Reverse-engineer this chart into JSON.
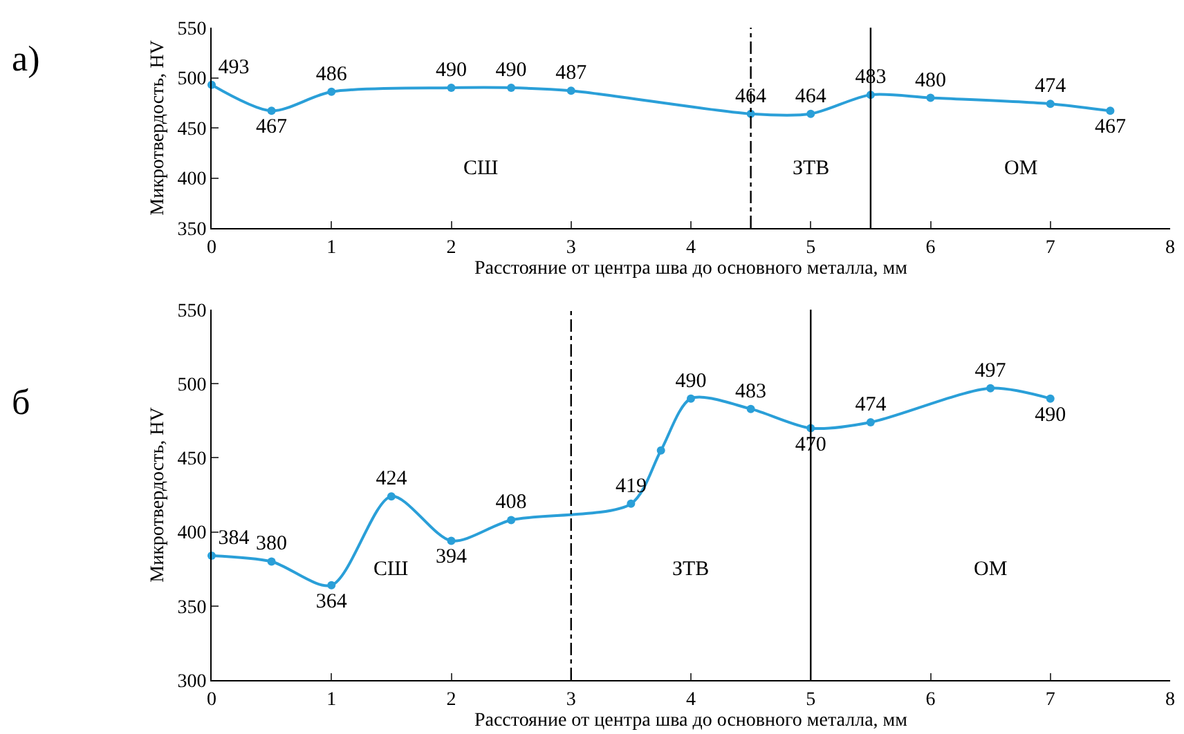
{
  "chart_data": [
    {
      "type": "line",
      "title": "а)",
      "xlabel": "Расстояние от центра шва до основного металла, мм",
      "ylabel": "Микротвердость, HV",
      "x": [
        0,
        0.5,
        1,
        2,
        2.5,
        3,
        4.5,
        5,
        5.5,
        6,
        7,
        7.5
      ],
      "series": [
        {
          "color": "#2a9fd8",
          "values": [
            493,
            467,
            486,
            490,
            490,
            487,
            464,
            464,
            483,
            480,
            474,
            467
          ]
        }
      ],
      "data_labels": true,
      "marker": "circle",
      "line_style": "solid",
      "grid": false,
      "xlim": [
        0,
        8
      ],
      "xticks": [
        0,
        1,
        2,
        3,
        4,
        5,
        6,
        7,
        8
      ],
      "ylim": [
        350,
        550
      ],
      "yticks": [
        350,
        400,
        450,
        500,
        550
      ],
      "ref_lines": [
        {
          "axis": "x",
          "value": 4.5,
          "color": "#000000",
          "line_style": "dashdot"
        },
        {
          "axis": "x",
          "value": 5.5,
          "color": "#000000",
          "line_style": "solid"
        }
      ],
      "annotations": [
        "СШ",
        "ЗТВ",
        "ОМ"
      ]
    },
    {
      "type": "line",
      "title": "б",
      "xlabel": "Расстояние от центра шва до основного металла, мм",
      "ylabel": "Микротвердость, HV",
      "x": [
        0,
        0.5,
        1,
        1.5,
        2,
        2.5,
        3.5,
        3.75,
        4,
        4.5,
        5,
        5.5,
        6.5,
        7
      ],
      "series": [
        {
          "color": "#2a9fd8",
          "values": [
            384,
            380,
            364,
            424,
            394,
            408,
            419,
            455,
            490,
            483,
            470,
            474,
            497,
            490
          ],
          "value_labels": [
            "384",
            "380",
            "364",
            "424",
            "394",
            "408",
            "419",
            null,
            "490",
            "483",
            "470",
            "474",
            "497",
            "490"
          ]
        }
      ],
      "marker": "circle",
      "line_style": "solid",
      "grid": false,
      "xlim": [
        0,
        8
      ],
      "xticks": [
        0,
        1,
        2,
        3,
        4,
        5,
        6,
        7,
        8
      ],
      "ylim": [
        300,
        550
      ],
      "yticks": [
        300,
        350,
        400,
        450,
        500,
        550
      ],
      "ref_lines": [
        {
          "axis": "x",
          "value": 3,
          "color": "#000000",
          "line_style": "dashdot"
        },
        {
          "axis": "x",
          "value": 5,
          "color": "#000000",
          "line_style": "solid"
        }
      ],
      "annotations": [
        "СШ",
        "ЗТВ",
        "ОМ"
      ]
    }
  ]
}
